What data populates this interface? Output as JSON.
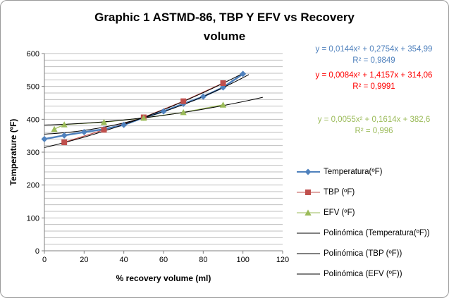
{
  "title": {
    "line1": "Graphic 1 ASTMD-86, TBP Y EFV  vs Recovery",
    "line2": "volume"
  },
  "equations": [
    {
      "formula": "y = 0,0144x² + 0,2754x + 354,99",
      "r2": "R² = 0,9849",
      "color": "#4F81BD"
    },
    {
      "formula": "y = 0,0084x² + 1,4157x + 314,06",
      "r2": "R² = 0,9991",
      "color": "#FF0000"
    },
    {
      "formula": "y = 0,0055x² + 0,1614x + 382,6",
      "r2": "R² = 0,996",
      "color": "#9BBB59"
    }
  ],
  "chart_data": {
    "type": "line",
    "title": "Graphic 1 ASTMD-86, TBP Y EFV  vs Recovery volume",
    "xlabel": "% recovery volume (ml)",
    "ylabel": "Temperature (ºF)",
    "xlim": [
      0,
      120
    ],
    "ylim": [
      0,
      600
    ],
    "x_ticks": [
      0,
      20,
      40,
      60,
      80,
      100,
      120
    ],
    "y_ticks": [
      0,
      100,
      200,
      300,
      400,
      500,
      600
    ],
    "y_minor_step": 20,
    "grid": "horizontal-minor",
    "legend_position": "right",
    "colors": {
      "gridline": "#BFBFBF",
      "axis": "#7F7F7F",
      "trendline": "#000000"
    },
    "series": [
      {
        "name": "Temperatura(ºF)",
        "color": "#4F81BD",
        "marker": "diamond",
        "x": [
          0,
          10,
          20,
          30,
          40,
          50,
          60,
          70,
          80,
          90,
          100
        ],
        "y": [
          340,
          351,
          361,
          370,
          383,
          405,
          424,
          447,
          469,
          497,
          538
        ]
      },
      {
        "name": "TBP (ºF)",
        "color": "#C0504D",
        "marker": "square",
        "x": [
          10,
          30,
          50,
          70,
          90
        ],
        "y": [
          330,
          368,
          406,
          455,
          510
        ]
      },
      {
        "name": "EFV (ºF)",
        "color": "#9BBB59",
        "marker": "triangle",
        "x": [
          5,
          10,
          30,
          50,
          70,
          90
        ],
        "y": [
          370,
          384,
          391,
          404,
          421,
          444
        ]
      }
    ],
    "trendlines": [
      {
        "name": "Polinómica (Temperatura(ºF))",
        "a": 0.0144,
        "b": 0.2754,
        "c": 354.99,
        "x_start": 0,
        "x_end": 103
      },
      {
        "name": "Polinómica (TBP (ºF))",
        "a": 0.0084,
        "b": 1.4157,
        "c": 314.06,
        "x_start": 0,
        "x_end": 100
      },
      {
        "name": "Polinómica (EFV (ºF))",
        "a": 0.0055,
        "b": 0.1614,
        "c": 382.6,
        "x_start": 0,
        "x_end": 110
      }
    ]
  }
}
